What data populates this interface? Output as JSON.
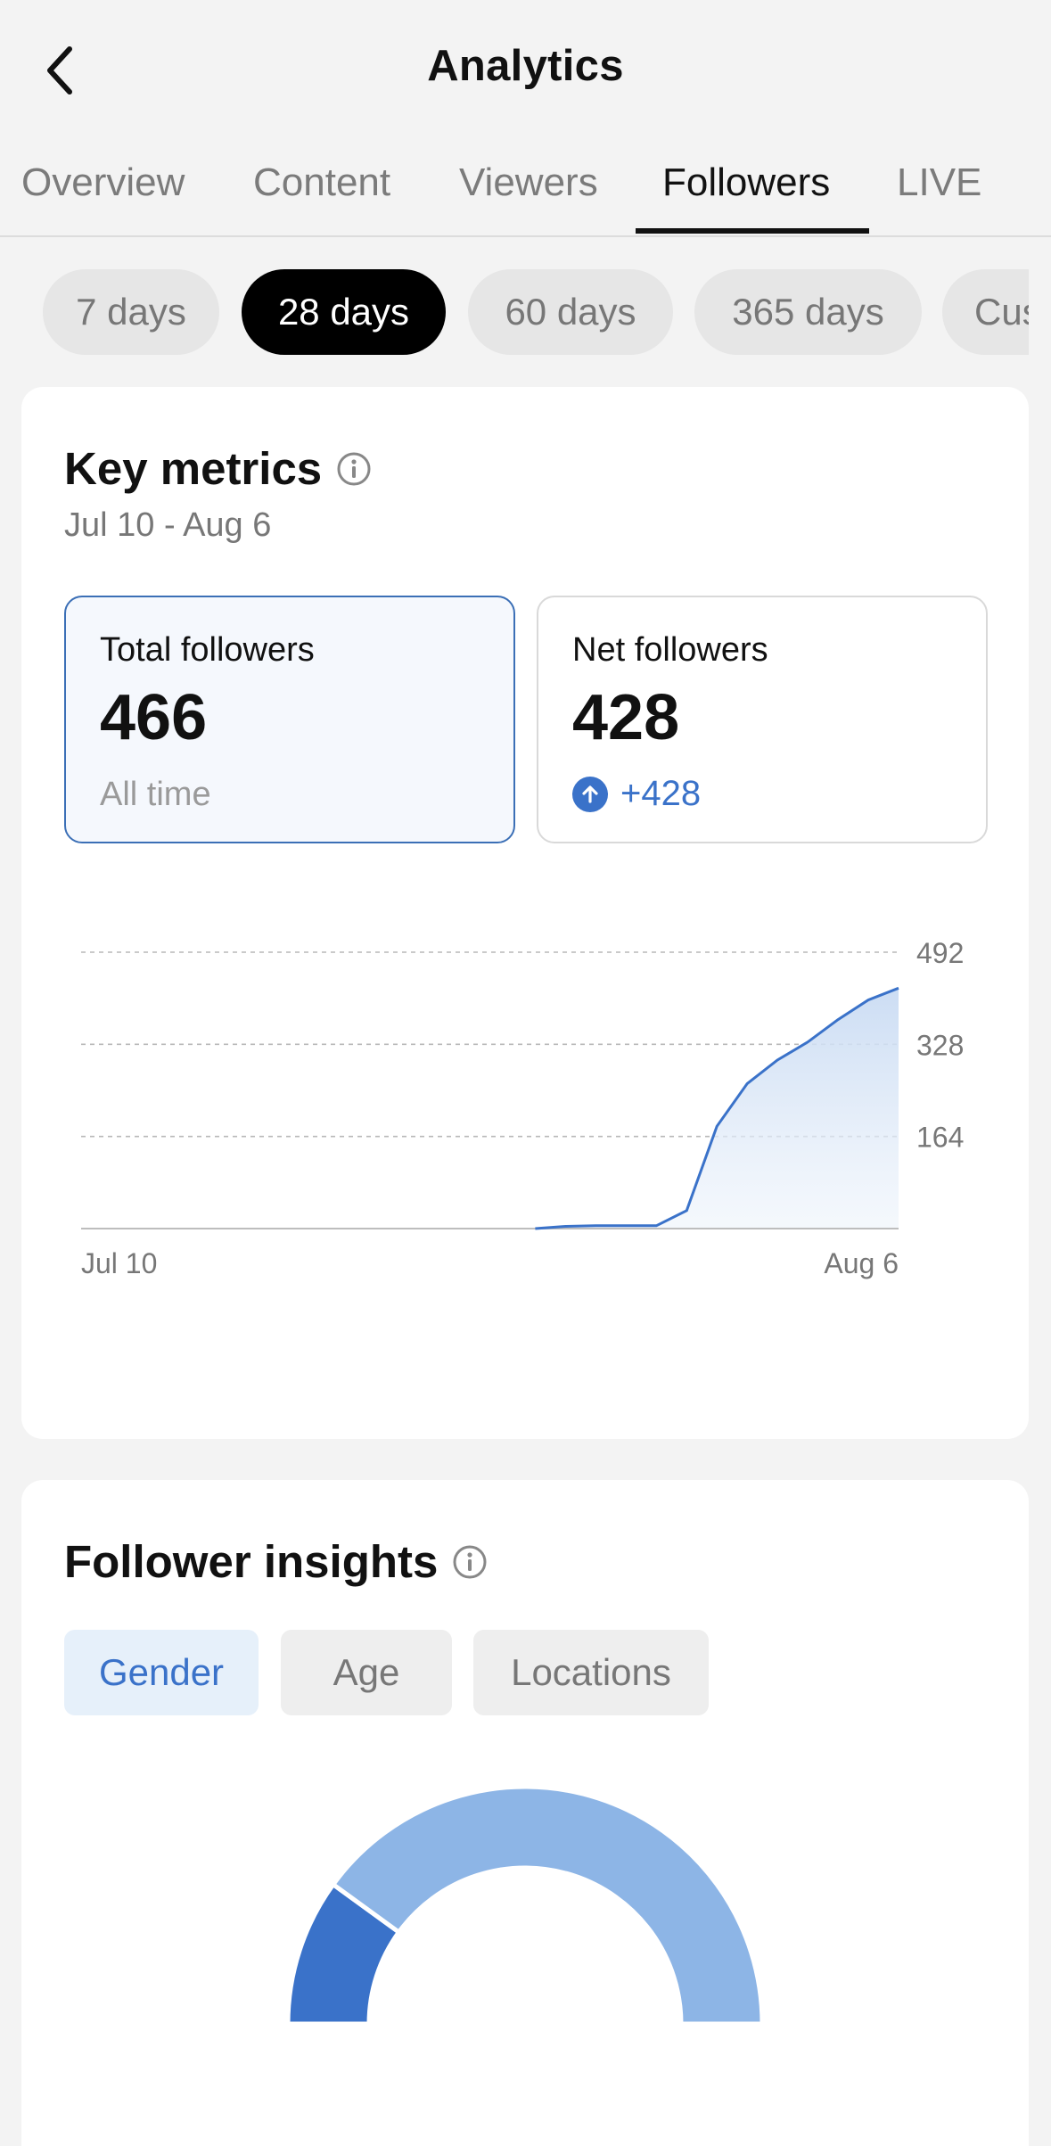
{
  "header": {
    "title": "Analytics"
  },
  "tabs": [
    {
      "label": "Overview"
    },
    {
      "label": "Content"
    },
    {
      "label": "Viewers"
    },
    {
      "label": "Followers",
      "active": true
    },
    {
      "label": "LIVE"
    }
  ],
  "periods": [
    {
      "label": "7 days"
    },
    {
      "label": "28 days",
      "active": true
    },
    {
      "label": "60 days"
    },
    {
      "label": "365 days"
    },
    {
      "label": "Custom"
    }
  ],
  "key_metrics": {
    "title": "Key metrics",
    "date_range": "Jul 10 - Aug 6",
    "total": {
      "label": "Total followers",
      "value": "466",
      "sub": "All time"
    },
    "net": {
      "label": "Net followers",
      "value": "428",
      "change": "+428"
    }
  },
  "chart_data": {
    "type": "area",
    "x_start_label": "Jul 10",
    "x_end_label": "Aug 6",
    "y_ticks": [
      164,
      328,
      492
    ],
    "ylim": [
      0,
      492
    ],
    "grid": true,
    "x": [
      1,
      2,
      3,
      4,
      5,
      6,
      7,
      8,
      9,
      10,
      11,
      12,
      13,
      14,
      15,
      16,
      17,
      18,
      19,
      20,
      21,
      22,
      23,
      24,
      25,
      26,
      27,
      28
    ],
    "values": [
      null,
      null,
      null,
      null,
      null,
      null,
      null,
      null,
      null,
      null,
      null,
      null,
      null,
      null,
      null,
      0,
      4,
      5,
      5,
      5,
      32,
      182,
      258,
      300,
      332,
      372,
      407,
      428
    ],
    "color": "#3a72c9"
  },
  "insights": {
    "title": "Follower insights",
    "tabs": [
      {
        "label": "Gender",
        "active": true
      },
      {
        "label": "Age"
      },
      {
        "label": "Locations"
      }
    ],
    "gender_chart": {
      "type": "pie",
      "values": [
        20,
        80
      ],
      "colors": [
        "#3a72c9",
        "#8db5e6"
      ]
    }
  }
}
